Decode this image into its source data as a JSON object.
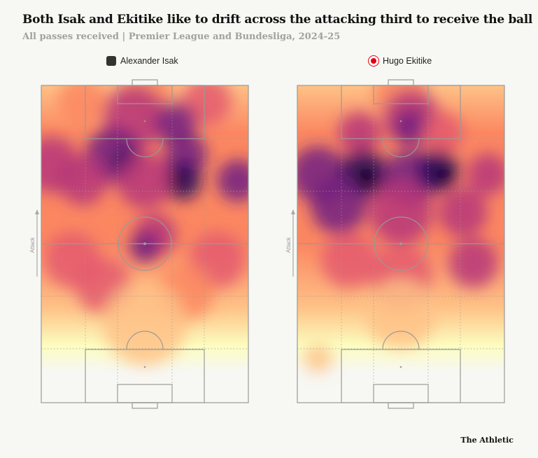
{
  "title": "Both Isak and Ekitike like to drift across the attacking third to receive the ball",
  "subtitle": "All passes received | Premier League and Bundesliga, 2024-25",
  "brand": "The Athletic",
  "chart_data": [
    {
      "type": "heatmap",
      "player": "Alexander Isak",
      "crest": "newcastle-crest-icon",
      "crest_color": "#333333",
      "direction_label": "Attack",
      "hotspots": [
        "left attacking channel",
        "right half-space near box",
        "centre-right around halfway circle"
      ]
    },
    {
      "type": "heatmap",
      "player": "Hugo Ekitike",
      "crest": "eintracht-frankfurt-crest-icon",
      "crest_color": "#e1000f",
      "direction_label": "Attack",
      "hotspots": [
        "central zone outside box",
        "right half-space outside box",
        "left channel"
      ]
    }
  ],
  "colors": {
    "scale": [
      "#fcfdbf",
      "#fec287",
      "#fb8761",
      "#e45a6e",
      "#b63679",
      "#721f81",
      "#2d1160",
      "#000004"
    ],
    "pitch_lines": "#9a9a96"
  }
}
